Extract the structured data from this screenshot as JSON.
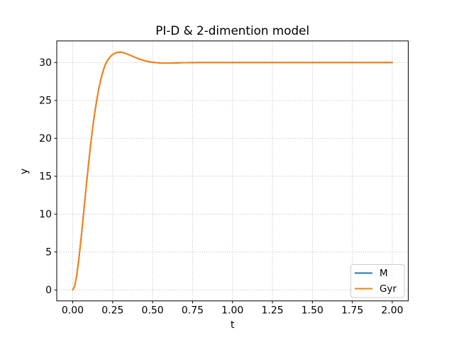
{
  "chart_data": {
    "type": "line",
    "title": "PI-D & 2-dimention model",
    "xlabel": "t",
    "ylabel": "y",
    "xlim": [
      -0.1,
      2.1
    ],
    "ylim": [
      -1.45,
      32.85
    ],
    "grid": {
      "visible": true,
      "style": "dotted",
      "color": "#b0b0b0"
    },
    "legend": {
      "position": "lower right",
      "edge_color": "#cccccc"
    },
    "xticks": {
      "values": [
        0,
        0.25,
        0.5,
        0.75,
        1.0,
        1.25,
        1.5,
        1.75,
        2.0
      ],
      "labels": [
        "0.00",
        "0.25",
        "0.50",
        "0.75",
        "1.00",
        "1.25",
        "1.50",
        "1.75",
        "2.00"
      ]
    },
    "yticks": {
      "values": [
        0,
        5,
        10,
        15,
        20,
        25,
        30
      ],
      "labels": [
        "0",
        "5",
        "10",
        "15",
        "20",
        "25",
        "30"
      ]
    },
    "x": [
      0,
      0.0125,
      0.025,
      0.0375,
      0.05,
      0.0625,
      0.075,
      0.0875,
      0.1,
      0.1125,
      0.125,
      0.1375,
      0.15,
      0.1625,
      0.175,
      0.1875,
      0.2,
      0.2125,
      0.225,
      0.2375,
      0.25,
      0.2625,
      0.275,
      0.2875,
      0.3,
      0.3125,
      0.325,
      0.35,
      0.375,
      0.4,
      0.425,
      0.45,
      0.475,
      0.5,
      0.525,
      0.55,
      0.575,
      0.6,
      0.65,
      0.7,
      0.75,
      0.8,
      0.9,
      1.0,
      1.2,
      1.4,
      1.6,
      1.8,
      2.0
    ],
    "series": [
      {
        "name": "M",
        "color": "#1f77b4",
        "values": [
          0.0,
          0.54,
          1.9,
          3.92,
          6.31,
          8.92,
          11.62,
          14.27,
          16.83,
          19.21,
          21.4,
          23.33,
          25.01,
          26.48,
          27.69,
          28.7,
          29.52,
          30.1,
          30.5,
          30.82,
          31.05,
          31.21,
          31.31,
          31.36,
          31.37,
          31.33,
          31.25,
          31.05,
          30.82,
          30.6,
          30.4,
          30.24,
          30.12,
          30.03,
          29.98,
          29.95,
          29.94,
          29.94,
          29.96,
          29.98,
          29.99,
          30.0,
          30.0,
          30.0,
          30.0,
          30.0,
          30.0,
          30.0,
          30.0
        ]
      },
      {
        "name": "Gyr",
        "color": "#ff7f0e",
        "values": [
          0.0,
          0.54,
          1.9,
          3.92,
          6.31,
          8.92,
          11.62,
          14.27,
          16.83,
          19.21,
          21.4,
          23.33,
          25.01,
          26.48,
          27.69,
          28.7,
          29.52,
          30.1,
          30.5,
          30.82,
          31.05,
          31.21,
          31.31,
          31.36,
          31.37,
          31.33,
          31.25,
          31.05,
          30.82,
          30.6,
          30.4,
          30.24,
          30.12,
          30.03,
          29.98,
          29.95,
          29.94,
          29.94,
          29.96,
          29.98,
          29.99,
          30.0,
          30.0,
          30.0,
          30.0,
          30.0,
          30.0,
          30.0,
          30.0
        ]
      }
    ]
  }
}
